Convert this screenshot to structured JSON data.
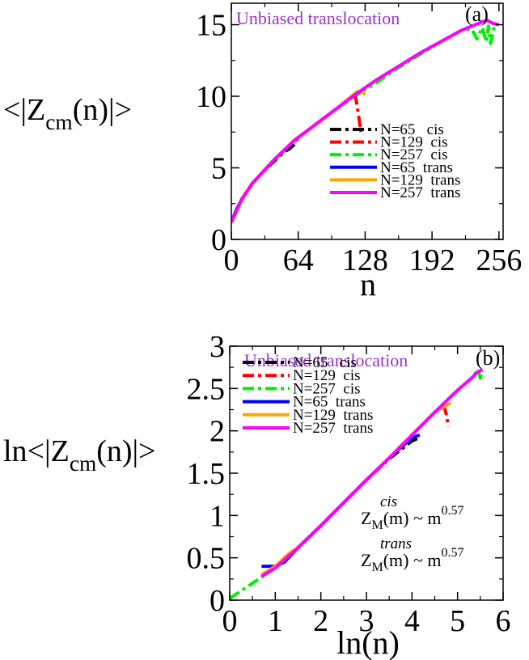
{
  "chart_data": [
    {
      "panel_label": "(a)",
      "type": "line",
      "annotation": "Unbiased translocation",
      "xlabel": "n",
      "ylabel": {
        "prefix": "<|Z",
        "sub": "cm",
        "suffix": "(n)|>"
      },
      "xlim": [
        0,
        260
      ],
      "ylim": [
        0,
        16.5
      ],
      "xticks": [
        0,
        64,
        128,
        192,
        256
      ],
      "yticks": [
        0,
        5,
        10,
        15
      ],
      "legend_position": "lower-right",
      "series": [
        {
          "name": "N=65   cis",
          "color": "#000000",
          "dash": "dashdot",
          "x": [
            0,
            5,
            10,
            20,
            30,
            40,
            50,
            55,
            60,
            63
          ],
          "y": [
            1.2,
            2.1,
            2.8,
            3.9,
            4.7,
            5.4,
            6.1,
            6.3,
            6.6,
            6.8
          ]
        },
        {
          "name": "N=129  cis",
          "color": "#ff0000",
          "dash": "dashdot",
          "x": [
            0,
            10,
            20,
            40,
            60,
            80,
            100,
            110,
            115,
            118,
            120,
            122,
            124
          ],
          "y": [
            1.2,
            2.8,
            3.9,
            5.5,
            6.9,
            8.0,
            9.1,
            9.6,
            10.0,
            10.2,
            9.5,
            8.5,
            7.5
          ]
        },
        {
          "name": "N=257  cis",
          "color": "#00ee00",
          "dash": "dashdot",
          "x": [
            0,
            10,
            20,
            40,
            60,
            80,
            100,
            120,
            140,
            160,
            180,
            200,
            220,
            230,
            235,
            240,
            244,
            246,
            248,
            252
          ],
          "y": [
            1.2,
            2.8,
            3.9,
            5.5,
            6.9,
            8.0,
            9.1,
            10.1,
            11.0,
            12.0,
            12.9,
            13.8,
            14.6,
            14.7,
            14.0,
            14.8,
            13.8,
            14.9,
            13.7,
            15.0
          ]
        },
        {
          "name": "N=65  trans",
          "color": "#0000ff",
          "dash": "solid",
          "x": [
            0,
            5,
            10,
            20,
            30,
            40,
            50,
            55,
            60,
            64
          ],
          "y": [
            1.2,
            2.1,
            2.8,
            3.9,
            4.7,
            5.5,
            6.2,
            6.5,
            6.9,
            7.0
          ]
        },
        {
          "name": "N=129  trans",
          "color": "#ffa500",
          "dash": "solid",
          "x": [
            0,
            10,
            20,
            40,
            60,
            80,
            100,
            110,
            120,
            125,
            128
          ],
          "y": [
            1.2,
            2.8,
            3.9,
            5.5,
            6.9,
            8.0,
            9.1,
            9.7,
            10.3,
            10.4,
            10.1
          ]
        },
        {
          "name": "N=257  trans",
          "color": "#ff00ff",
          "dash": "solid",
          "x": [
            0,
            10,
            20,
            40,
            60,
            80,
            100,
            120,
            140,
            160,
            180,
            200,
            220,
            230,
            240,
            245,
            250,
            256
          ],
          "y": [
            1.2,
            2.8,
            3.9,
            5.5,
            6.9,
            8.0,
            9.1,
            10.2,
            11.2,
            12.1,
            13.0,
            13.8,
            14.6,
            14.9,
            15.2,
            15.3,
            15.1,
            15.0
          ]
        }
      ]
    },
    {
      "panel_label": "(b)",
      "type": "line",
      "annotation": "Unbiased translocation",
      "xlabel": "ln(n)",
      "ylabel": {
        "prefix": "ln<|Z",
        "sub": "cm",
        "suffix": "(n)|>"
      },
      "xlim": [
        0,
        6
      ],
      "ylim": [
        0,
        3
      ],
      "xticks": [
        0,
        1,
        2,
        3,
        4,
        5,
        6
      ],
      "yticks": [
        0,
        0.5,
        1,
        1.5,
        2,
        2.5,
        3
      ],
      "ytick_labels": [
        "0",
        "0.5",
        "1",
        "1.5",
        "2",
        "2.5",
        "3"
      ],
      "legend_position": "top-left",
      "fit_labels": [
        {
          "base": "Z",
          "sub": "M",
          "sup": "cis",
          "rest": "(m) ~ m",
          "exp": "0.57"
        },
        {
          "base": "Z",
          "sub": "M",
          "sup": "trans",
          "rest": "(m) ~ m",
          "exp": "0.57"
        }
      ],
      "series": [
        {
          "name": "N=65   cis",
          "color": "#000000",
          "dash": "dashdot",
          "x": [
            1.0,
            1.5,
            2.0,
            2.5,
            3.0,
            3.5,
            4.0,
            4.17
          ],
          "y": [
            0.38,
            0.62,
            0.88,
            1.15,
            1.42,
            1.67,
            1.88,
            1.92
          ]
        },
        {
          "name": "N=129  cis",
          "color": "#ff0000",
          "dash": "dashdot",
          "x": [
            0.7,
            1.0,
            1.5,
            2.0,
            2.5,
            3.0,
            3.5,
            4.0,
            4.5,
            4.7,
            4.75,
            4.8
          ],
          "y": [
            0.28,
            0.38,
            0.62,
            0.88,
            1.15,
            1.42,
            1.68,
            1.95,
            2.22,
            2.3,
            2.2,
            2.05
          ]
        },
        {
          "name": "N=257  cis",
          "color": "#00ee00",
          "dash": "dashdot",
          "x": [
            0.0,
            0.5,
            1.0,
            1.5,
            2.0,
            2.5,
            3.0,
            3.5,
            4.0,
            4.5,
            5.0,
            5.3,
            5.45,
            5.5,
            5.55
          ],
          "y": [
            0.02,
            0.2,
            0.38,
            0.62,
            0.88,
            1.15,
            1.42,
            1.68,
            1.95,
            2.22,
            2.48,
            2.62,
            2.72,
            2.62,
            2.72
          ]
        },
        {
          "name": "N=65  trans",
          "color": "#0000ff",
          "dash": "solid",
          "x": [
            0.7,
            1.0,
            1.2,
            1.5,
            2.0,
            2.5,
            3.0,
            3.5,
            4.0,
            4.17
          ],
          "y": [
            0.4,
            0.4,
            0.45,
            0.62,
            0.88,
            1.15,
            1.42,
            1.68,
            1.92,
            1.95
          ]
        },
        {
          "name": "N=129  trans",
          "color": "#ffa500",
          "dash": "solid",
          "x": [
            0.7,
            1.0,
            1.3,
            1.5,
            2.0,
            2.5,
            3.0,
            3.5,
            4.0,
            4.5,
            4.85
          ],
          "y": [
            0.3,
            0.4,
            0.55,
            0.62,
            0.88,
            1.15,
            1.42,
            1.68,
            1.95,
            2.22,
            2.33
          ]
        },
        {
          "name": "N=257  trans",
          "color": "#ff00ff",
          "dash": "solid",
          "x": [
            0.7,
            1.0,
            1.5,
            2.0,
            2.5,
            3.0,
            3.5,
            4.0,
            4.5,
            5.0,
            5.3,
            5.45,
            5.55
          ],
          "y": [
            0.28,
            0.38,
            0.62,
            0.88,
            1.15,
            1.42,
            1.68,
            1.95,
            2.22,
            2.48,
            2.62,
            2.7,
            2.72
          ]
        }
      ]
    }
  ]
}
